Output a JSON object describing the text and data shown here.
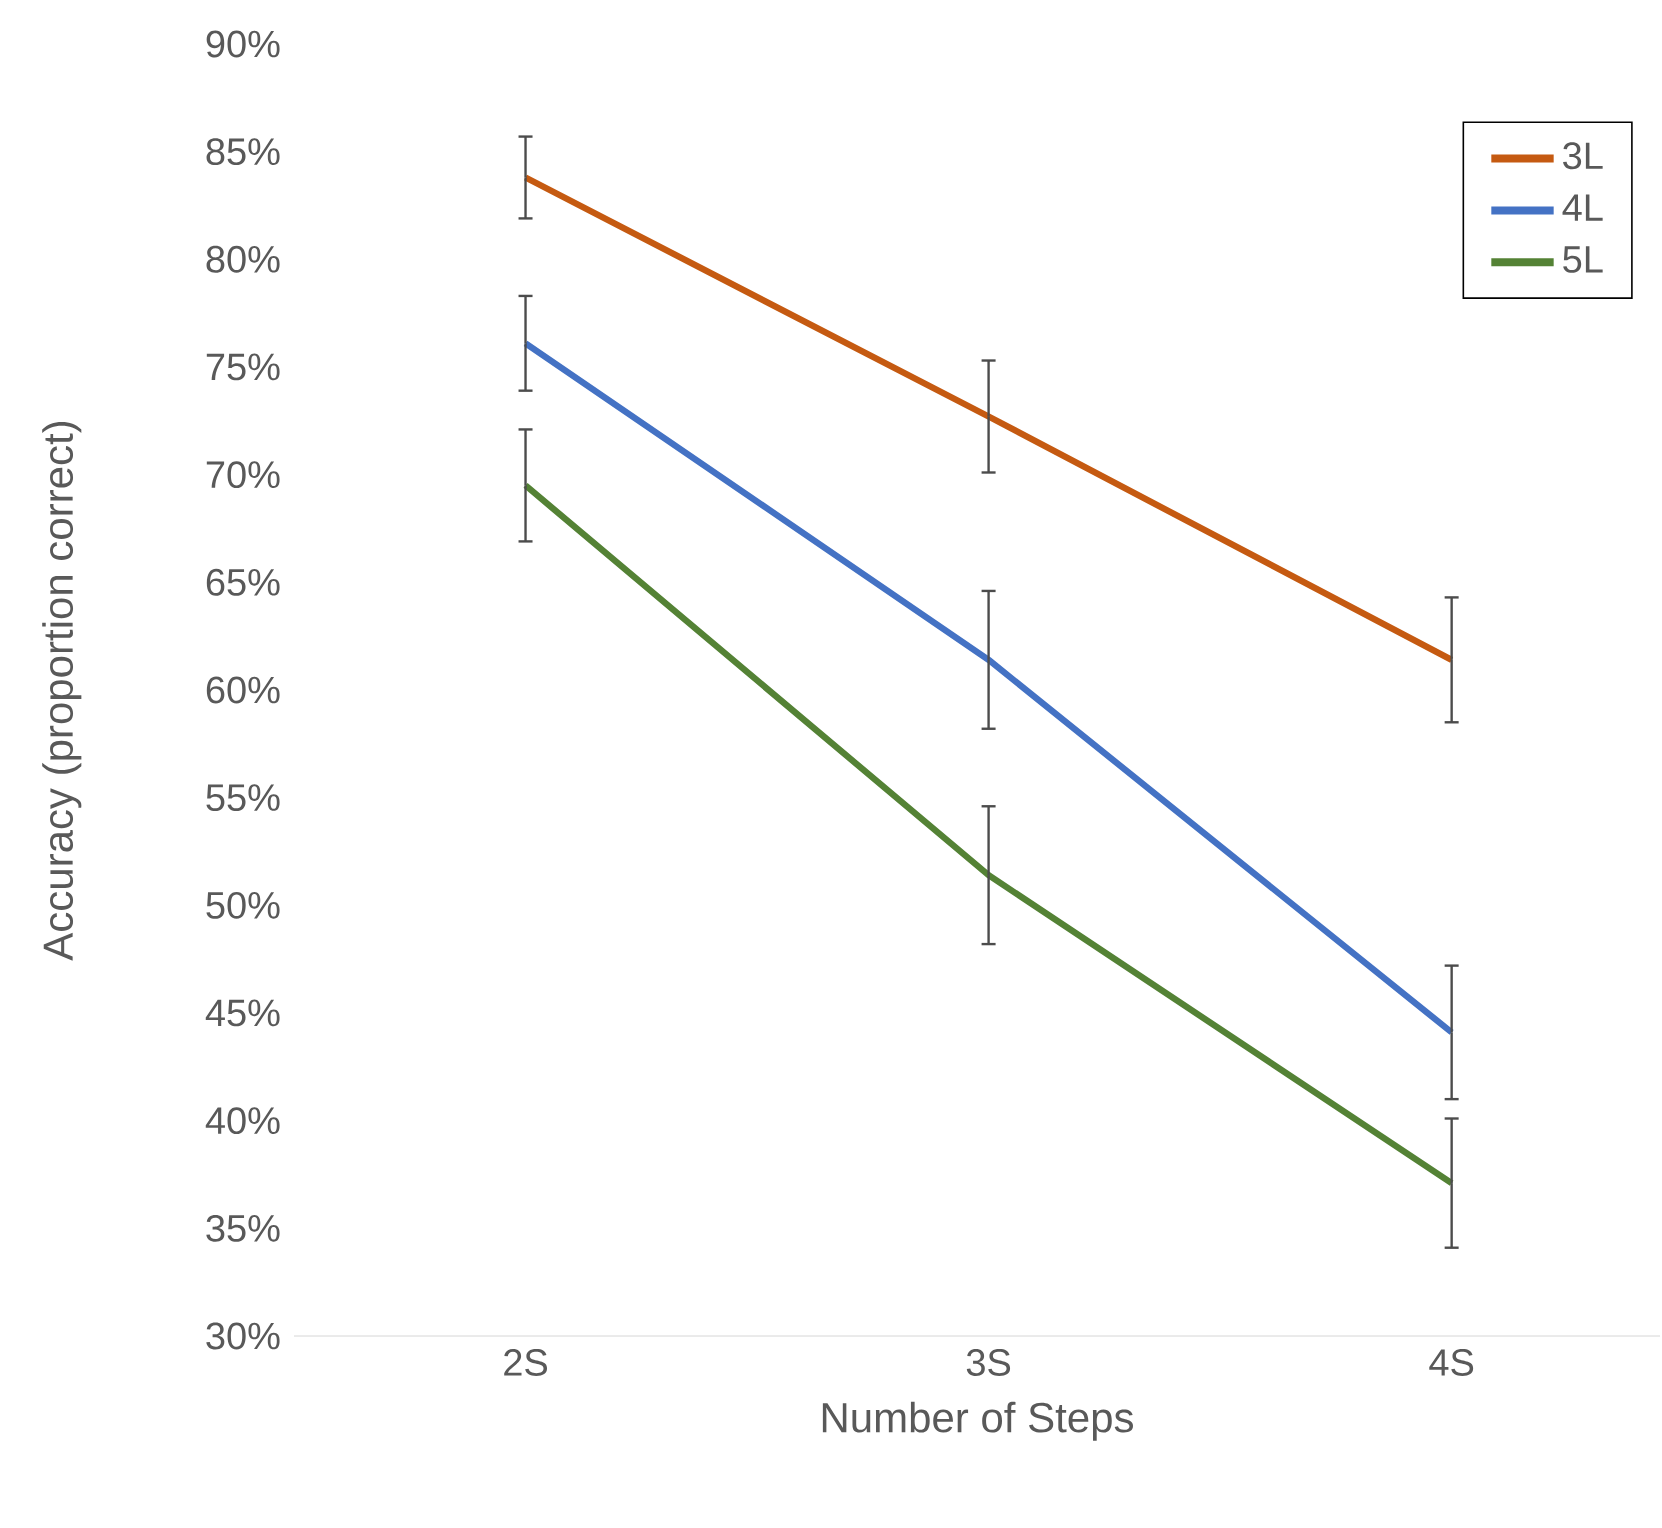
{
  "chart_data": {
    "type": "line",
    "xlabel": "Number of Steps",
    "ylabel": "Accuracy (proportion correct)",
    "categories": [
      "2S",
      "3S",
      "4S"
    ],
    "series": [
      {
        "name": "3L",
        "color": "#c55a11",
        "values": [
          83.8,
          72.7,
          61.4
        ],
        "errors": [
          1.9,
          2.6,
          2.9
        ]
      },
      {
        "name": "4L",
        "color": "#4472c4",
        "values": [
          76.1,
          61.4,
          44.1
        ],
        "errors": [
          2.2,
          3.2,
          3.1
        ]
      },
      {
        "name": "5L",
        "color": "#548235",
        "values": [
          69.5,
          51.4,
          37.1
        ],
        "errors": [
          2.6,
          3.2,
          3.0
        ]
      }
    ],
    "ylim": [
      30,
      90
    ],
    "yticks": [
      {
        "value": 30,
        "label": "30%"
      },
      {
        "value": 35,
        "label": "35%"
      },
      {
        "value": 40,
        "label": "40%"
      },
      {
        "value": 45,
        "label": "45%"
      },
      {
        "value": 50,
        "label": "50%"
      },
      {
        "value": 55,
        "label": "55%"
      },
      {
        "value": 60,
        "label": "60%"
      },
      {
        "value": 65,
        "label": "65%"
      },
      {
        "value": 70,
        "label": "70%"
      },
      {
        "value": 75,
        "label": "75%"
      },
      {
        "value": 80,
        "label": "80%"
      },
      {
        "value": 85,
        "label": "85%"
      },
      {
        "value": 90,
        "label": "90%"
      }
    ],
    "legend": "top right",
    "grid": false
  }
}
